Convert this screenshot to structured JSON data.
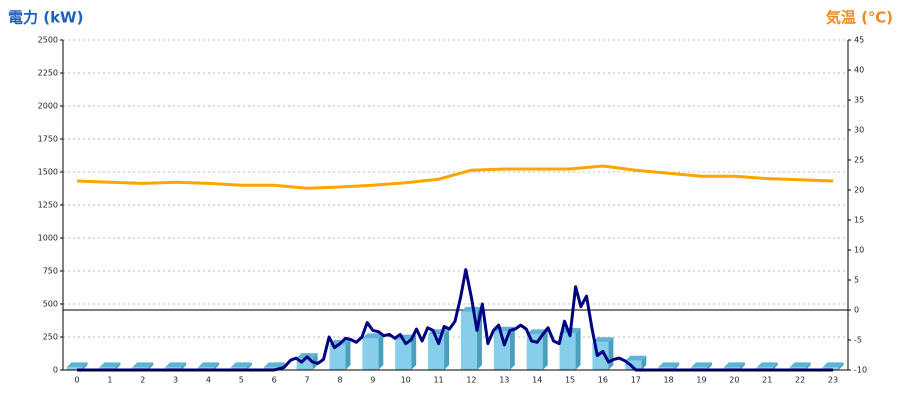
{
  "chart_data": {
    "type": "bar-line",
    "y_title": "電力 (kW)",
    "y2_title": "気温 (℃)",
    "categories": [
      "0",
      "1",
      "2",
      "3",
      "4",
      "5",
      "6",
      "7",
      "8",
      "9",
      "10",
      "11",
      "12",
      "13",
      "14",
      "15",
      "16",
      "17",
      "18",
      "19",
      "20",
      "21",
      "22",
      "23"
    ],
    "ylim": [
      0,
      2500
    ],
    "yticks": [
      0,
      250,
      500,
      750,
      1000,
      1250,
      1500,
      1750,
      2000,
      2250,
      2500
    ],
    "y2lim": [
      -10,
      45
    ],
    "y2ticks": [
      -10,
      -5,
      0,
      5,
      10,
      15,
      20,
      25,
      30,
      35,
      40,
      45
    ],
    "grid": true,
    "series": [
      {
        "kind": "bar",
        "color": "#87ceeb",
        "values": [
          20,
          20,
          20,
          20,
          20,
          20,
          20,
          90,
          190,
          240,
          230,
          270,
          440,
          290,
          270,
          280,
          210,
          70,
          20,
          20,
          20,
          20,
          20,
          20
        ]
      },
      {
        "kind": "line",
        "color": "#ffa500",
        "axis": "y2",
        "values": [
          21.5,
          21.3,
          21.1,
          21.3,
          21.1,
          20.8,
          20.8,
          20.3,
          20.5,
          20.8,
          21.2,
          21.8,
          23.3,
          23.5,
          23.5,
          23.5,
          24,
          23.3,
          22.8,
          22.3,
          22.3,
          21.9,
          21.7,
          21.5
        ]
      },
      {
        "kind": "line",
        "color": "#000080",
        "x": [
          0,
          6,
          6.3,
          6.5,
          6.67,
          6.83,
          7,
          7.17,
          7.33,
          7.5,
          7.67,
          7.83,
          8,
          8.17,
          8.33,
          8.5,
          8.67,
          8.83,
          9,
          9.17,
          9.33,
          9.5,
          9.67,
          9.83,
          10,
          10.17,
          10.33,
          10.5,
          10.67,
          10.83,
          11,
          11.17,
          11.33,
          11.5,
          11.67,
          11.83,
          12,
          12.17,
          12.33,
          12.5,
          12.67,
          12.83,
          13,
          13.17,
          13.33,
          13.5,
          13.67,
          13.83,
          14,
          14.17,
          14.33,
          14.5,
          14.67,
          14.83,
          15,
          15.17,
          15.33,
          15.5,
          15.67,
          15.83,
          16,
          16.17,
          16.33,
          16.5,
          16.67,
          16.83,
          17,
          23
        ],
        "values": [
          0,
          0,
          20,
          75,
          90,
          60,
          100,
          60,
          50,
          80,
          250,
          170,
          200,
          240,
          230,
          210,
          250,
          360,
          300,
          290,
          260,
          270,
          240,
          270,
          200,
          230,
          310,
          220,
          320,
          300,
          200,
          330,
          310,
          370,
          550,
          760,
          550,
          300,
          500,
          200,
          300,
          340,
          190,
          300,
          310,
          340,
          310,
          220,
          210,
          270,
          320,
          220,
          200,
          370,
          260,
          630,
          480,
          560,
          310,
          110,
          140,
          60,
          80,
          90,
          70,
          40,
          0,
          0
        ]
      }
    ]
  }
}
